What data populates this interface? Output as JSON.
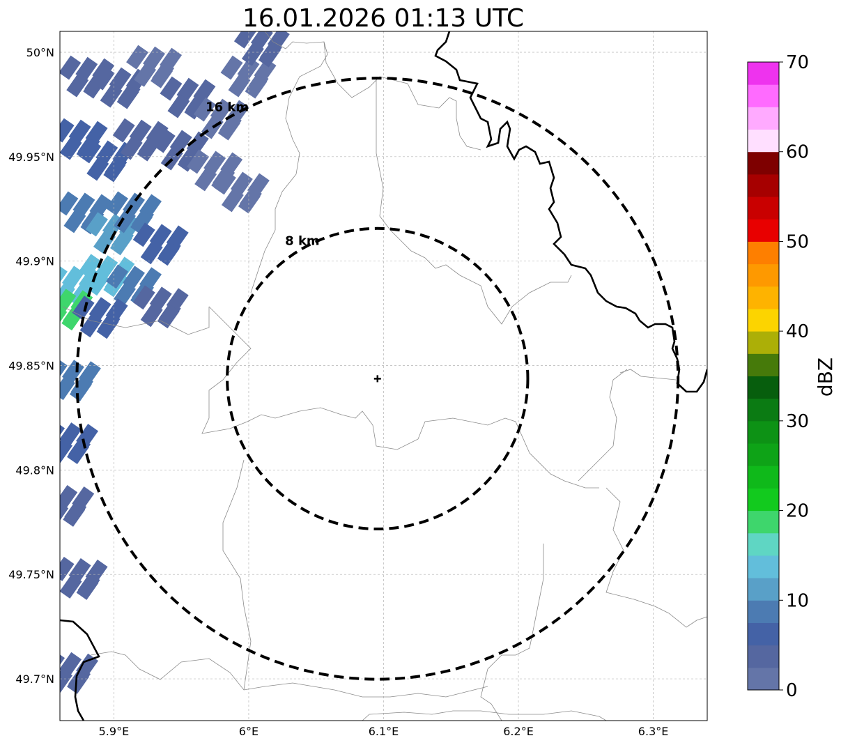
{
  "map": {
    "title": "16.01.2026 01:13 UTC",
    "radar_site": {
      "lon": 6.0955,
      "lat": 49.8437
    },
    "extent": {
      "lon_min": 5.86,
      "lon_max": 6.34,
      "lat_min": 49.68,
      "lat_max": 50.01
    },
    "gridlines": true,
    "lon_ticks": [
      {
        "value": 5.9,
        "label": "5.9°E"
      },
      {
        "value": 6.0,
        "label": "6°E"
      },
      {
        "value": 6.1,
        "label": "6.1°E"
      },
      {
        "value": 6.2,
        "label": "6.2°E"
      },
      {
        "value": 6.3,
        "label": "6.3°E"
      }
    ],
    "lat_ticks": [
      {
        "value": 50.0,
        "label": "50°N"
      },
      {
        "value": 49.95,
        "label": "49.95°N"
      },
      {
        "value": 49.9,
        "label": "49.9°N"
      },
      {
        "value": 49.85,
        "label": "49.85°N"
      },
      {
        "value": 49.8,
        "label": "49.8°N"
      },
      {
        "value": 49.75,
        "label": "49.75°N"
      },
      {
        "value": 49.7,
        "label": "49.7°N"
      }
    ],
    "range_rings": [
      {
        "range_km": 8,
        "label": "8 km"
      },
      {
        "range_km": 16,
        "label": "16 km"
      }
    ]
  },
  "colorbar": {
    "label": "dBZ",
    "min": 0,
    "max": 70,
    "step": 2.5,
    "tick_labels": [
      "0",
      "10",
      "20",
      "30",
      "40",
      "50",
      "60",
      "70"
    ],
    "colors": [
      "#6475a8",
      "#5567a0",
      "#4462a6",
      "#4c7bb2",
      "#59a0c8",
      "#62bedb",
      "#5fd6c3",
      "#3ed66c",
      "#12ca1e",
      "#0fb91a",
      "#0ea317",
      "#0d9215",
      "#0b7b13",
      "#075e0d",
      "#467a0a",
      "#acaf07",
      "#fcd400",
      "#feb300",
      "#fe9900",
      "#fe7f00",
      "#e80000",
      "#c90000",
      "#a60000",
      "#7e0000",
      "#ffdfff",
      "#ffaaff",
      "#ff6bff",
      "#ee33ee"
    ]
  },
  "echoes": [
    {
      "lon": 5.88,
      "lat": 49.985,
      "dbz": 4
    },
    {
      "lon": 5.905,
      "lat": 49.98,
      "dbz": 3
    },
    {
      "lon": 5.93,
      "lat": 49.99,
      "dbz": 2
    },
    {
      "lon": 5.955,
      "lat": 49.975,
      "dbz": 3
    },
    {
      "lon": 5.98,
      "lat": 49.965,
      "dbz": 2
    },
    {
      "lon": 6.0,
      "lat": 49.985,
      "dbz": 2
    },
    {
      "lon": 6.01,
      "lat": 50.0,
      "dbz": 3
    },
    {
      "lon": 5.875,
      "lat": 49.955,
      "dbz": 7
    },
    {
      "lon": 5.895,
      "lat": 49.945,
      "dbz": 5
    },
    {
      "lon": 5.92,
      "lat": 49.955,
      "dbz": 4
    },
    {
      "lon": 5.95,
      "lat": 49.95,
      "dbz": 3
    },
    {
      "lon": 5.975,
      "lat": 49.94,
      "dbz": 2
    },
    {
      "lon": 5.995,
      "lat": 49.93,
      "dbz": 2
    },
    {
      "lon": 5.878,
      "lat": 49.92,
      "dbz": 9
    },
    {
      "lon": 5.9,
      "lat": 49.91,
      "dbz": 12
    },
    {
      "lon": 5.915,
      "lat": 49.92,
      "dbz": 8
    },
    {
      "lon": 5.935,
      "lat": 49.905,
      "dbz": 5
    },
    {
      "lon": 5.87,
      "lat": 49.885,
      "dbz": 14
    },
    {
      "lon": 5.895,
      "lat": 49.89,
      "dbz": 13
    },
    {
      "lon": 5.915,
      "lat": 49.885,
      "dbz": 8
    },
    {
      "lon": 5.935,
      "lat": 49.875,
      "dbz": 4
    },
    {
      "lon": 5.864,
      "lat": 49.874,
      "dbz": 19
    },
    {
      "lon": 5.89,
      "lat": 49.87,
      "dbz": 6
    },
    {
      "lon": 5.87,
      "lat": 49.84,
      "dbz": 9
    },
    {
      "lon": 5.868,
      "lat": 49.81,
      "dbz": 6
    },
    {
      "lon": 5.865,
      "lat": 49.78,
      "dbz": 4
    },
    {
      "lon": 5.875,
      "lat": 49.745,
      "dbz": 3
    },
    {
      "lon": 5.868,
      "lat": 49.7,
      "dbz": 3
    }
  ]
}
